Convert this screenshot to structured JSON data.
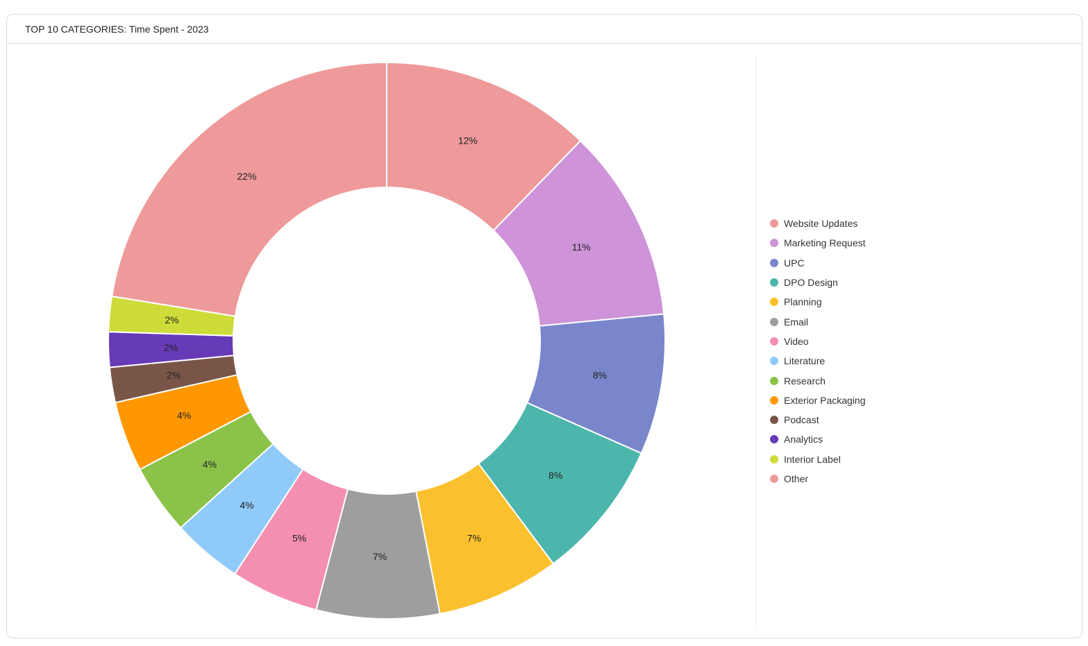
{
  "card": {
    "title": "TOP 10 CATEGORIES: Time Spent - 2023"
  },
  "chart_data": {
    "type": "pie",
    "variant": "donut",
    "legend_position": "right",
    "categories": [
      "Website Updates",
      "Marketing Request",
      "UPC",
      "DPO Design",
      "Planning",
      "Email",
      "Video",
      "Literature",
      "Research",
      "Exterior Packaging",
      "Podcast",
      "Analytics",
      "Interior Label",
      "Other"
    ],
    "values": [
      12,
      11,
      8,
      8,
      7,
      7,
      5,
      4,
      4,
      4,
      2,
      2,
      2,
      22
    ],
    "labels": [
      "12%",
      "11%",
      "8%",
      "8%",
      "7%",
      "7%",
      "5%",
      "4%",
      "4%",
      "4%",
      "2%",
      "2%",
      "2%",
      "22%"
    ],
    "colors": [
      "#ee9a9a",
      "#ce93d8",
      "#7986cb",
      "#4db6ac",
      "#fbc02d",
      "#9e9e9e",
      "#f48fb1",
      "#90caf9",
      "#8bc34a",
      "#ff9800",
      "#795548",
      "#673ab7",
      "#cddc39",
      "#ee9a9a"
    ]
  }
}
